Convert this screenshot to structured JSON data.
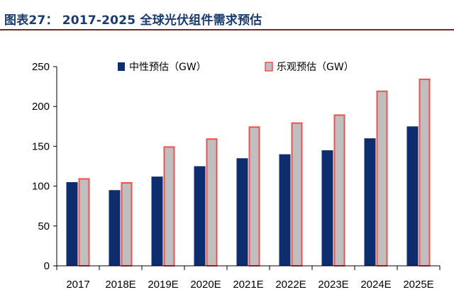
{
  "header": {
    "title": "图表27：  2017-2025 全球光伏组件需求预估"
  },
  "colors": {
    "title": "#1a3b6e",
    "rule": "#6b2a2a",
    "neutral_fill": "#0e2d6e",
    "optimistic_fill": "#bfbfbf",
    "optimistic_stroke": "#f05050",
    "axis": "#000000"
  },
  "chart_data": {
    "type": "bar",
    "title": "",
    "xlabel": "",
    "ylabel": "",
    "ylim": [
      0,
      250
    ],
    "yticks": [
      0,
      50,
      100,
      150,
      200,
      250
    ],
    "grid": false,
    "legend_position": "top-center",
    "categories": [
      "2017",
      "2018E",
      "2019E",
      "2020E",
      "2021E",
      "2022E",
      "2023E",
      "2024E",
      "2025E"
    ],
    "series": [
      {
        "name": "中性预估（GW）",
        "values": [
          105,
          95,
          112,
          125,
          135,
          140,
          145,
          160,
          175
        ]
      },
      {
        "name": "乐观预估（GW）",
        "values": [
          110,
          105,
          150,
          160,
          175,
          180,
          190,
          220,
          235
        ]
      }
    ]
  }
}
